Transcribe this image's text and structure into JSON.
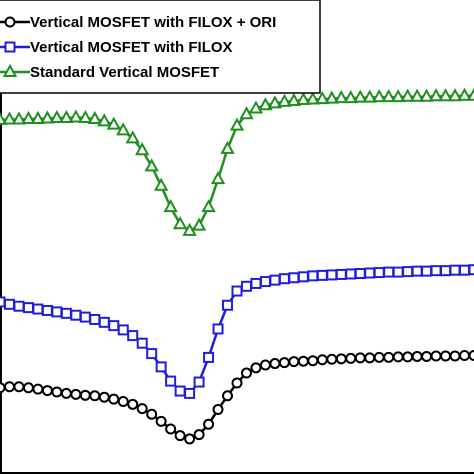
{
  "chart_data": {
    "type": "line",
    "title": "",
    "xlabel": "",
    "ylabel": "",
    "xlim": [
      0,
      100
    ],
    "ylim": [
      0,
      100
    ],
    "grid": false,
    "legend_position": "top-left",
    "series": [
      {
        "name": "Vertical MOSFET with FILOX + ORI",
        "color": "#000000",
        "marker": "circle",
        "x": [
          0,
          2,
          4,
          6,
          8,
          10,
          12,
          14,
          16,
          18,
          20,
          22,
          24,
          26,
          28,
          30,
          32,
          34,
          36,
          38,
          40,
          42,
          44,
          46,
          48,
          50,
          52,
          54,
          56,
          58,
          60,
          62,
          64,
          66,
          68,
          70,
          72,
          74,
          76,
          78,
          80,
          82,
          84,
          86,
          88,
          90,
          92,
          94,
          96,
          98,
          100
        ],
        "y": [
          18.2,
          18.4,
          18.4,
          18.2,
          17.9,
          17.6,
          17.3,
          17.0,
          16.8,
          16.6,
          16.5,
          16.2,
          15.8,
          15.3,
          14.7,
          13.8,
          12.6,
          11.1,
          9.5,
          8.1,
          7.4,
          8.3,
          10.5,
          13.6,
          16.5,
          19.2,
          21.3,
          22.4,
          23.0,
          23.3,
          23.5,
          23.7,
          23.8,
          23.9,
          24.1,
          24.2,
          24.3,
          24.4,
          24.5,
          24.5,
          24.6,
          24.6,
          24.7,
          24.7,
          24.8,
          24.8,
          24.9,
          24.9,
          24.9,
          25.0,
          25.0
        ]
      },
      {
        "name": "Vertical MOSFET with FILOX",
        "color": "#1f1fd6",
        "marker": "square",
        "x": [
          0,
          2,
          4,
          6,
          8,
          10,
          12,
          14,
          16,
          18,
          20,
          22,
          24,
          26,
          28,
          30,
          32,
          34,
          36,
          38,
          40,
          42,
          44,
          46,
          48,
          50,
          52,
          54,
          56,
          58,
          60,
          62,
          64,
          66,
          68,
          70,
          72,
          74,
          76,
          78,
          80,
          82,
          84,
          86,
          88,
          90,
          92,
          94,
          96,
          98,
          100
        ],
        "y": [
          36.3,
          35.8,
          35.4,
          35.1,
          34.8,
          34.5,
          34.2,
          33.9,
          33.5,
          33.1,
          32.6,
          32.0,
          31.3,
          30.4,
          29.2,
          27.6,
          25.4,
          22.6,
          19.6,
          17.5,
          17.0,
          19.4,
          24.6,
          30.6,
          35.6,
          38.6,
          39.6,
          40.2,
          40.6,
          40.9,
          41.2,
          41.4,
          41.6,
          41.8,
          41.9,
          42.0,
          42.1,
          42.2,
          42.3,
          42.4,
          42.5,
          42.6,
          42.6,
          42.7,
          42.8,
          42.8,
          42.9,
          42.9,
          43.0,
          43.0,
          43.1
        ]
      },
      {
        "name": "Standard Vertical MOSFET",
        "color": "#1f8f1f",
        "marker": "triangle",
        "x": [
          0,
          2,
          4,
          6,
          8,
          10,
          12,
          14,
          16,
          18,
          20,
          22,
          24,
          26,
          28,
          30,
          32,
          34,
          36,
          38,
          40,
          42,
          44,
          46,
          48,
          50,
          52,
          54,
          56,
          58,
          60,
          62,
          64,
          66,
          68,
          70,
          72,
          74,
          76,
          78,
          80,
          82,
          84,
          86,
          88,
          90,
          92,
          94,
          96,
          98,
          100
        ],
        "y": [
          74.7,
          74.8,
          74.8,
          74.9,
          74.9,
          75.0,
          75.1,
          75.1,
          75.2,
          75.1,
          74.9,
          74.4,
          73.7,
          72.5,
          70.8,
          68.3,
          64.9,
          60.8,
          56.3,
          52.7,
          51.3,
          52.4,
          56.3,
          62.2,
          68.6,
          73.5,
          75.9,
          77.1,
          77.8,
          78.2,
          78.5,
          78.7,
          78.9,
          79.0,
          79.1,
          79.2,
          79.3,
          79.3,
          79.4,
          79.4,
          79.5,
          79.5,
          79.5,
          79.6,
          79.6,
          79.6,
          79.7,
          79.7,
          79.7,
          79.8,
          79.8
        ]
      }
    ]
  }
}
